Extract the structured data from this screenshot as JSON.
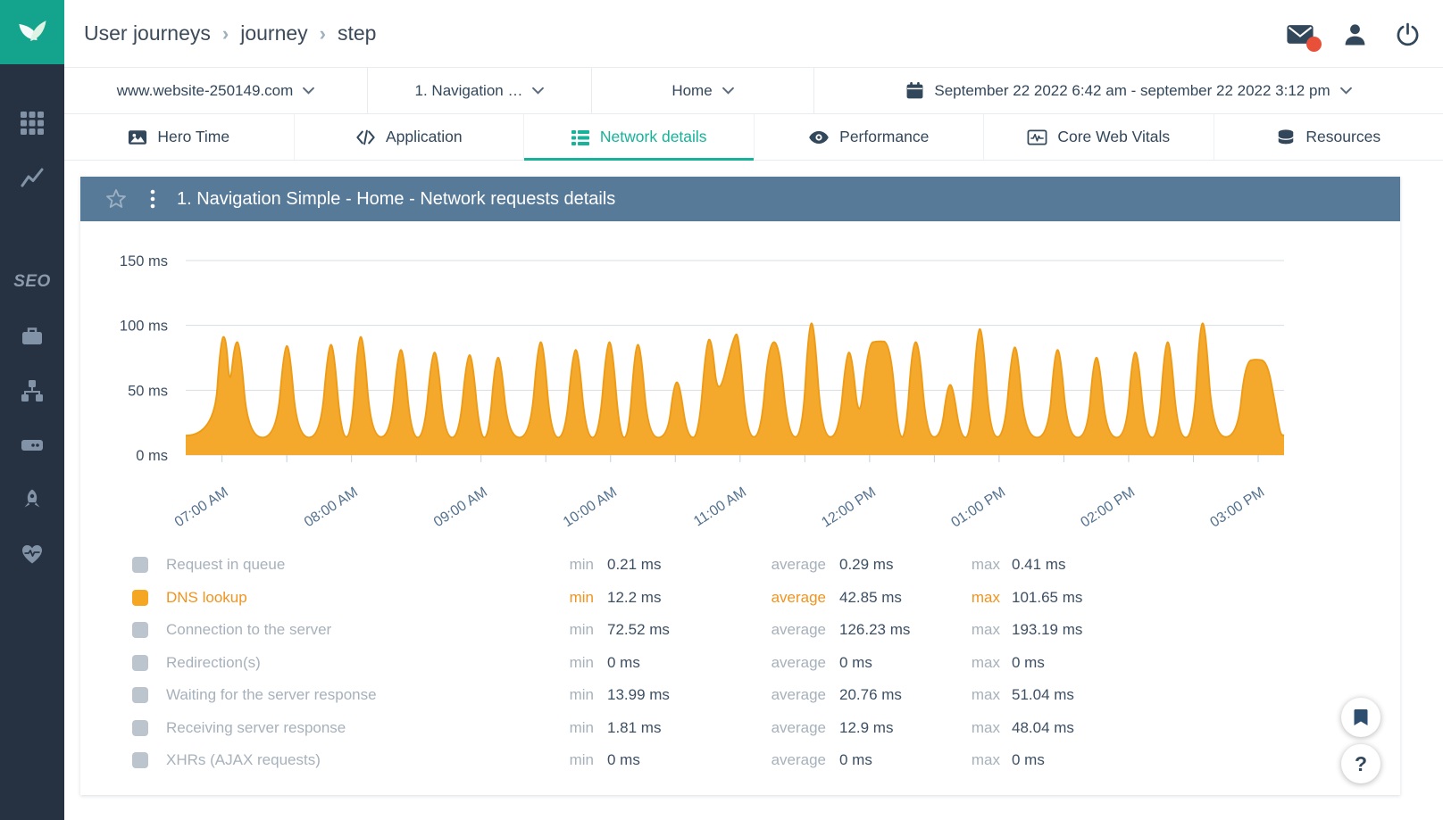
{
  "colors": {
    "accent_teal": "#16b29a",
    "series_orange": "#f5a623",
    "panel_header_blue": "#587a99",
    "sidebar_navy": "#263241",
    "logo_teal": "#14a38d",
    "text_dark": "#33475b",
    "text_muted": "#a7b1bb",
    "notification_red": "#e8503a"
  },
  "sidebar": {
    "items": [
      {
        "name": "apps-grid",
        "label": ""
      },
      {
        "name": "analytics",
        "label": ""
      },
      {
        "name": "seo",
        "label": "SEO"
      },
      {
        "name": "business",
        "label": ""
      },
      {
        "name": "sitemap",
        "label": ""
      },
      {
        "name": "hosting",
        "label": ""
      },
      {
        "name": "boost",
        "label": ""
      },
      {
        "name": "health",
        "label": ""
      }
    ]
  },
  "header": {
    "breadcrumb": [
      "User journeys",
      "journey",
      "step"
    ],
    "separator": "›"
  },
  "filters": {
    "website": "www.website-250149.com",
    "journey": "1. Navigation …",
    "step": "Home",
    "date_range": "September 22 2022 6:42 am - september 22 2022 3:12 pm"
  },
  "tabs": [
    {
      "label": "Hero Time",
      "active": false
    },
    {
      "label": "Application",
      "active": false
    },
    {
      "label": "Network details",
      "active": true
    },
    {
      "label": "Performance",
      "active": false
    },
    {
      "label": "Core Web Vitals",
      "active": false
    },
    {
      "label": "Resources",
      "active": false
    }
  ],
  "panel": {
    "title": "1. Navigation Simple - Home - Network requests details"
  },
  "chart_data": {
    "type": "area",
    "title": "1. Navigation Simple - Home - Network requests details",
    "series_name": "DNS lookup",
    "unit": "ms",
    "color": "#f5a623",
    "stroke": "#ee9c17",
    "ylim": [
      0,
      150
    ],
    "yticks": [
      {
        "value": 150,
        "label": "150 ms"
      },
      {
        "value": 100,
        "label": "100 ms"
      },
      {
        "value": 50,
        "label": "50 ms"
      },
      {
        "value": 0,
        "label": "0 ms"
      }
    ],
    "xticks": [
      {
        "hour": 7,
        "label": "07:00 AM"
      },
      {
        "hour": 8,
        "label": "08:00 AM"
      },
      {
        "hour": 9,
        "label": "09:00 AM"
      },
      {
        "hour": 10,
        "label": "10:00 AM"
      },
      {
        "hour": 11,
        "label": "11:00 AM"
      },
      {
        "hour": 12,
        "label": "12:00 PM"
      },
      {
        "hour": 13,
        "label": "01:00 PM"
      },
      {
        "hour": 14,
        "label": "02:00 PM"
      },
      {
        "hour": 15,
        "label": "03:00 PM"
      }
    ],
    "x_range_hours": [
      6.72,
      15.2
    ],
    "minor_tick_hours": 0.5,
    "points": [
      [
        6.72,
        15
      ],
      [
        6.94,
        15
      ],
      [
        6.99,
        90
      ],
      [
        7.03,
        92
      ],
      [
        7.06,
        50
      ],
      [
        7.1,
        88
      ],
      [
        7.14,
        86
      ],
      [
        7.2,
        14
      ],
      [
        7.42,
        13
      ],
      [
        7.48,
        83
      ],
      [
        7.52,
        85
      ],
      [
        7.58,
        14
      ],
      [
        7.76,
        13
      ],
      [
        7.82,
        84
      ],
      [
        7.86,
        86
      ],
      [
        7.92,
        14
      ],
      [
        8.0,
        14
      ],
      [
        8.05,
        90
      ],
      [
        8.09,
        92
      ],
      [
        8.15,
        15
      ],
      [
        8.3,
        13
      ],
      [
        8.36,
        80
      ],
      [
        8.4,
        82
      ],
      [
        8.46,
        14
      ],
      [
        8.56,
        13
      ],
      [
        8.62,
        78
      ],
      [
        8.66,
        80
      ],
      [
        8.72,
        14
      ],
      [
        8.83,
        13
      ],
      [
        8.89,
        76
      ],
      [
        8.93,
        78
      ],
      [
        8.99,
        14
      ],
      [
        9.06,
        13
      ],
      [
        9.11,
        74
      ],
      [
        9.15,
        76
      ],
      [
        9.21,
        14
      ],
      [
        9.38,
        13
      ],
      [
        9.44,
        86
      ],
      [
        9.48,
        88
      ],
      [
        9.54,
        14
      ],
      [
        9.65,
        13
      ],
      [
        9.71,
        80
      ],
      [
        9.75,
        82
      ],
      [
        9.81,
        14
      ],
      [
        9.91,
        13
      ],
      [
        9.97,
        86
      ],
      [
        10.01,
        88
      ],
      [
        10.07,
        14
      ],
      [
        10.14,
        13
      ],
      [
        10.19,
        84
      ],
      [
        10.23,
        86
      ],
      [
        10.29,
        14
      ],
      [
        10.44,
        13
      ],
      [
        10.49,
        55
      ],
      [
        10.53,
        57
      ],
      [
        10.59,
        14
      ],
      [
        10.68,
        13
      ],
      [
        10.74,
        88
      ],
      [
        10.78,
        90
      ],
      [
        10.83,
        40
      ],
      [
        10.95,
        92
      ],
      [
        10.99,
        94
      ],
      [
        11.05,
        15
      ],
      [
        11.16,
        13
      ],
      [
        11.22,
        86
      ],
      [
        11.3,
        88
      ],
      [
        11.37,
        15
      ],
      [
        11.48,
        13
      ],
      [
        11.53,
        100
      ],
      [
        11.57,
        103
      ],
      [
        11.63,
        15
      ],
      [
        11.76,
        13
      ],
      [
        11.82,
        78
      ],
      [
        11.86,
        80
      ],
      [
        11.92,
        20
      ],
      [
        11.99,
        86
      ],
      [
        12.06,
        88
      ],
      [
        12.16,
        87
      ],
      [
        12.22,
        15
      ],
      [
        12.28,
        13
      ],
      [
        12.33,
        86
      ],
      [
        12.38,
        88
      ],
      [
        12.44,
        15
      ],
      [
        12.55,
        13
      ],
      [
        12.6,
        53
      ],
      [
        12.64,
        55
      ],
      [
        12.7,
        14
      ],
      [
        12.78,
        13
      ],
      [
        12.83,
        96
      ],
      [
        12.87,
        98
      ],
      [
        12.93,
        15
      ],
      [
        13.04,
        13
      ],
      [
        13.1,
        82
      ],
      [
        13.14,
        84
      ],
      [
        13.2,
        14
      ],
      [
        13.38,
        13
      ],
      [
        13.43,
        80
      ],
      [
        13.47,
        82
      ],
      [
        13.53,
        14
      ],
      [
        13.68,
        13
      ],
      [
        13.73,
        74
      ],
      [
        13.77,
        76
      ],
      [
        13.83,
        14
      ],
      [
        13.98,
        13
      ],
      [
        14.03,
        78
      ],
      [
        14.07,
        80
      ],
      [
        14.13,
        14
      ],
      [
        14.23,
        13
      ],
      [
        14.28,
        86
      ],
      [
        14.32,
        88
      ],
      [
        14.38,
        14
      ],
      [
        14.5,
        13
      ],
      [
        14.55,
        100
      ],
      [
        14.59,
        103
      ],
      [
        14.65,
        15
      ],
      [
        14.84,
        13
      ],
      [
        14.9,
        72
      ],
      [
        14.99,
        74
      ],
      [
        15.07,
        72
      ],
      [
        15.13,
        40
      ],
      [
        15.17,
        16
      ],
      [
        15.2,
        15
      ]
    ]
  },
  "legend": {
    "min_label": "min",
    "average_label": "average",
    "max_label": "max",
    "rows": [
      {
        "label": "Request in queue",
        "min": "0.21 ms",
        "average": "0.29 ms",
        "max": "0.41 ms",
        "color": "#bcc5cd",
        "highlight": false
      },
      {
        "label": "DNS lookup",
        "min": "12.2 ms",
        "average": "42.85 ms",
        "max": "101.65 ms",
        "color": "#f5a623",
        "highlight": true
      },
      {
        "label": "Connection to the server",
        "min": "72.52 ms",
        "average": "126.23 ms",
        "max": "193.19 ms",
        "color": "#bcc5cd",
        "highlight": false
      },
      {
        "label": "Redirection(s)",
        "min": "0 ms",
        "average": "0 ms",
        "max": "0 ms",
        "color": "#bcc5cd",
        "highlight": false
      },
      {
        "label": "Waiting for the server response",
        "min": "13.99 ms",
        "average": "20.76 ms",
        "max": "51.04 ms",
        "color": "#bcc5cd",
        "highlight": false
      },
      {
        "label": "Receiving server response",
        "min": "1.81 ms",
        "average": "12.9 ms",
        "max": "48.04 ms",
        "color": "#bcc5cd",
        "highlight": false
      },
      {
        "label": "XHRs (AJAX requests)",
        "min": "0 ms",
        "average": "0 ms",
        "max": "0 ms",
        "color": "#bcc5cd",
        "highlight": false
      }
    ]
  },
  "floating": {
    "help_label": "?"
  }
}
